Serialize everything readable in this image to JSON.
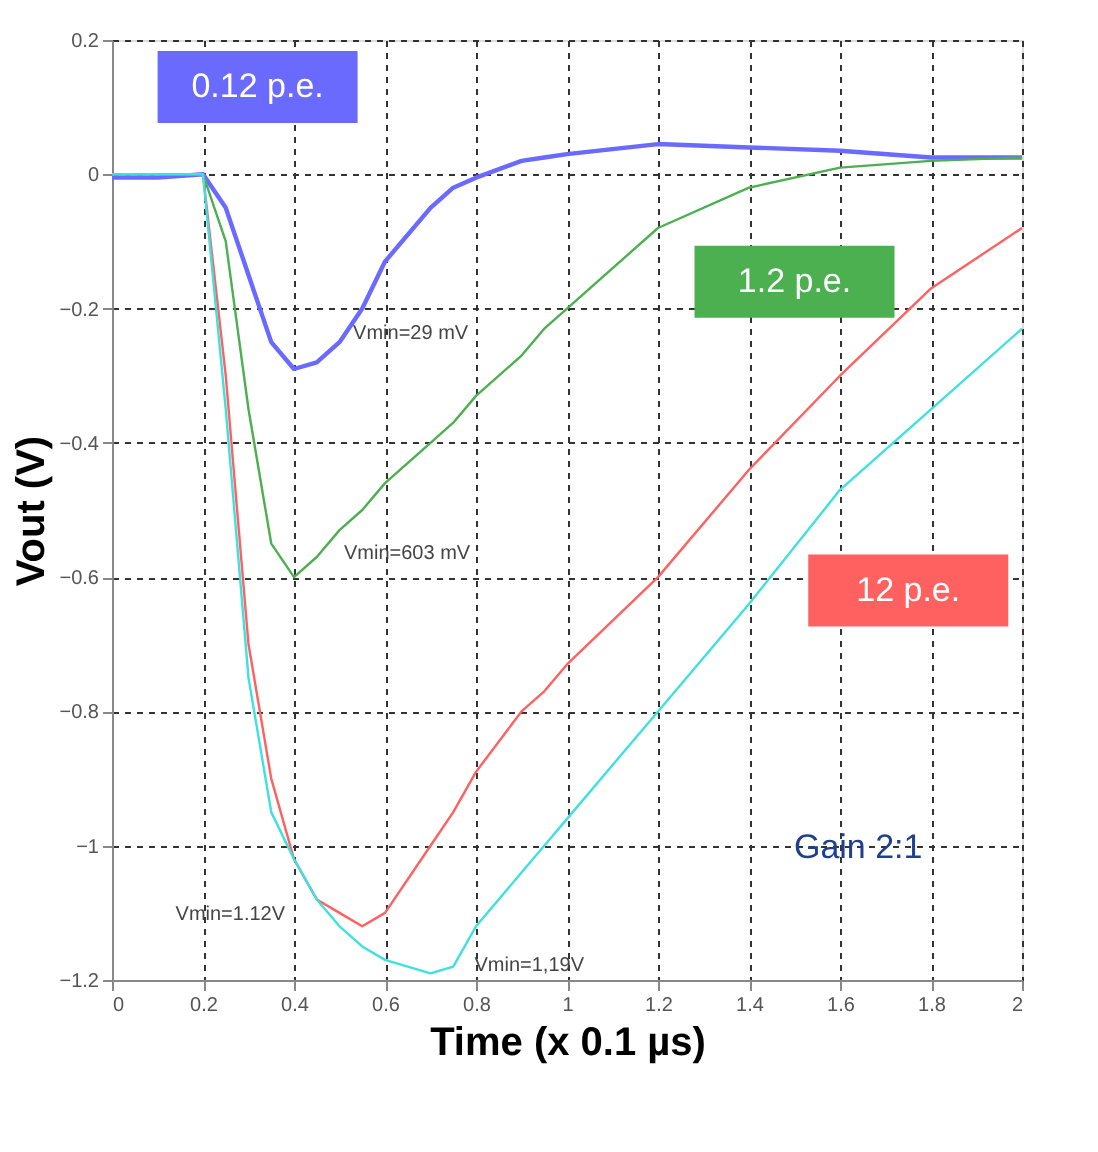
{
  "chart_data": {
    "type": "line",
    "xlabel": "Time (x 0.1 µs)",
    "ylabel": "Vout (V)",
    "x": [
      0,
      0.1,
      0.2,
      0.25,
      0.3,
      0.35,
      0.4,
      0.45,
      0.5,
      0.55,
      0.6,
      0.7,
      0.75,
      0.8,
      0.9,
      0.95,
      1.0,
      1.2,
      1.4,
      1.6,
      1.8,
      2.0
    ],
    "series": [
      {
        "name": "0.12 p.e.",
        "color": "#6a6aff",
        "values": [
          -0.005,
          -0.005,
          0,
          -0.05,
          -0.15,
          -0.25,
          -0.29,
          -0.28,
          -0.25,
          -0.2,
          -0.13,
          -0.05,
          -0.02,
          -0.005,
          0.02,
          0.025,
          0.03,
          0.045,
          0.04,
          0.035,
          0.025,
          0.025
        ]
      },
      {
        "name": "1.2 p.e.",
        "color": "#4caf50",
        "values": [
          0,
          0,
          0,
          -0.1,
          -0.35,
          -0.55,
          -0.6,
          -0.57,
          -0.53,
          -0.5,
          -0.46,
          -0.4,
          -0.37,
          -0.33,
          -0.27,
          -0.23,
          -0.2,
          -0.08,
          -0.02,
          0.01,
          0.02,
          0.025
        ]
      },
      {
        "name": "12 p.e.",
        "color": "#ff6060",
        "values": [
          0,
          0,
          0,
          -0.3,
          -0.7,
          -0.9,
          -1.02,
          -1.08,
          -1.1,
          -1.12,
          -1.1,
          -1.0,
          -0.95,
          -0.89,
          -0.8,
          -0.77,
          -0.73,
          -0.6,
          -0.44,
          -0.3,
          -0.17,
          -0.08
        ]
      },
      {
        "color": "#40e0e0",
        "values": [
          0,
          0,
          0,
          -0.35,
          -0.75,
          -0.95,
          -1.02,
          -1.08,
          -1.12,
          -1.15,
          -1.17,
          -1.19,
          -1.18,
          -1.12,
          -1.04,
          -1.0,
          -0.96,
          -0.8,
          -0.64,
          -0.47,
          -0.35,
          -0.23
        ]
      }
    ],
    "xlim": [
      0,
      2
    ],
    "xticks": [
      0,
      0.2,
      0.4,
      0.6,
      0.8,
      1,
      1.2,
      1.4,
      1.6,
      1.8,
      2
    ],
    "ylim": [
      -1.2,
      0.2
    ],
    "yticks": [
      -1.2,
      -1,
      -0.8,
      -0.6,
      -0.4,
      -0.2,
      0,
      0.2
    ],
    "grid": true,
    "line_style": "solid",
    "marker": "none",
    "annotations": [
      {
        "text": "Vmin=29 mV",
        "x": 0.42,
        "y": -0.29
      },
      {
        "text": "Vmin=603 mV",
        "x": 0.4,
        "y": -0.6
      },
      "Vmin=1.12V",
      {
        "text": "Vmin=1,19V",
        "x": 0.7,
        "y": -1.19
      },
      "Gain 2:1"
    ]
  }
}
